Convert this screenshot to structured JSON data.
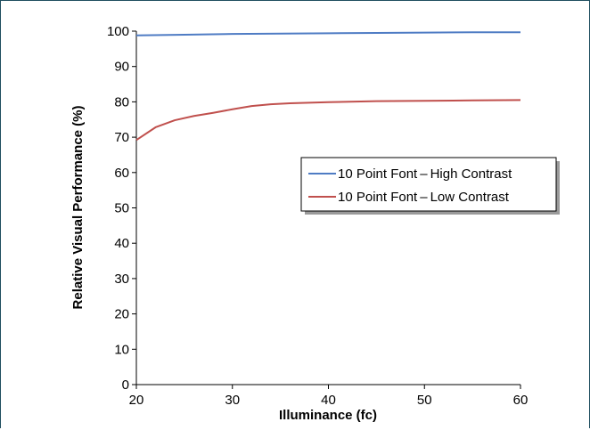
{
  "chart_data": {
    "type": "line",
    "xlabel": "Illuminance (fc)",
    "ylabel": "Relative Visual Performance (%)",
    "xlim": [
      20,
      60
    ],
    "ylim": [
      0,
      100
    ],
    "xticks": [
      20,
      30,
      40,
      50,
      60
    ],
    "yticks": [
      0,
      10,
      20,
      30,
      40,
      50,
      60,
      70,
      80,
      90,
      100
    ],
    "grid": false,
    "legend_position": "right-middle",
    "series": [
      {
        "name": "10 Point Font – High Contrast",
        "color": "#4f7cc4",
        "x": [
          20,
          25,
          30,
          35,
          40,
          45,
          50,
          55,
          60
        ],
        "y": [
          98.8,
          99.0,
          99.2,
          99.3,
          99.4,
          99.5,
          99.6,
          99.7,
          99.7
        ]
      },
      {
        "name": "10 Point Font – Low Contrast",
        "color": "#c0504d",
        "x": [
          20,
          22,
          24,
          26,
          28,
          30,
          32,
          34,
          36,
          40,
          45,
          50,
          55,
          60
        ],
        "y": [
          69.2,
          72.8,
          74.8,
          76.0,
          76.9,
          77.9,
          78.8,
          79.3,
          79.6,
          79.9,
          80.2,
          80.3,
          80.4,
          80.5
        ]
      }
    ]
  }
}
